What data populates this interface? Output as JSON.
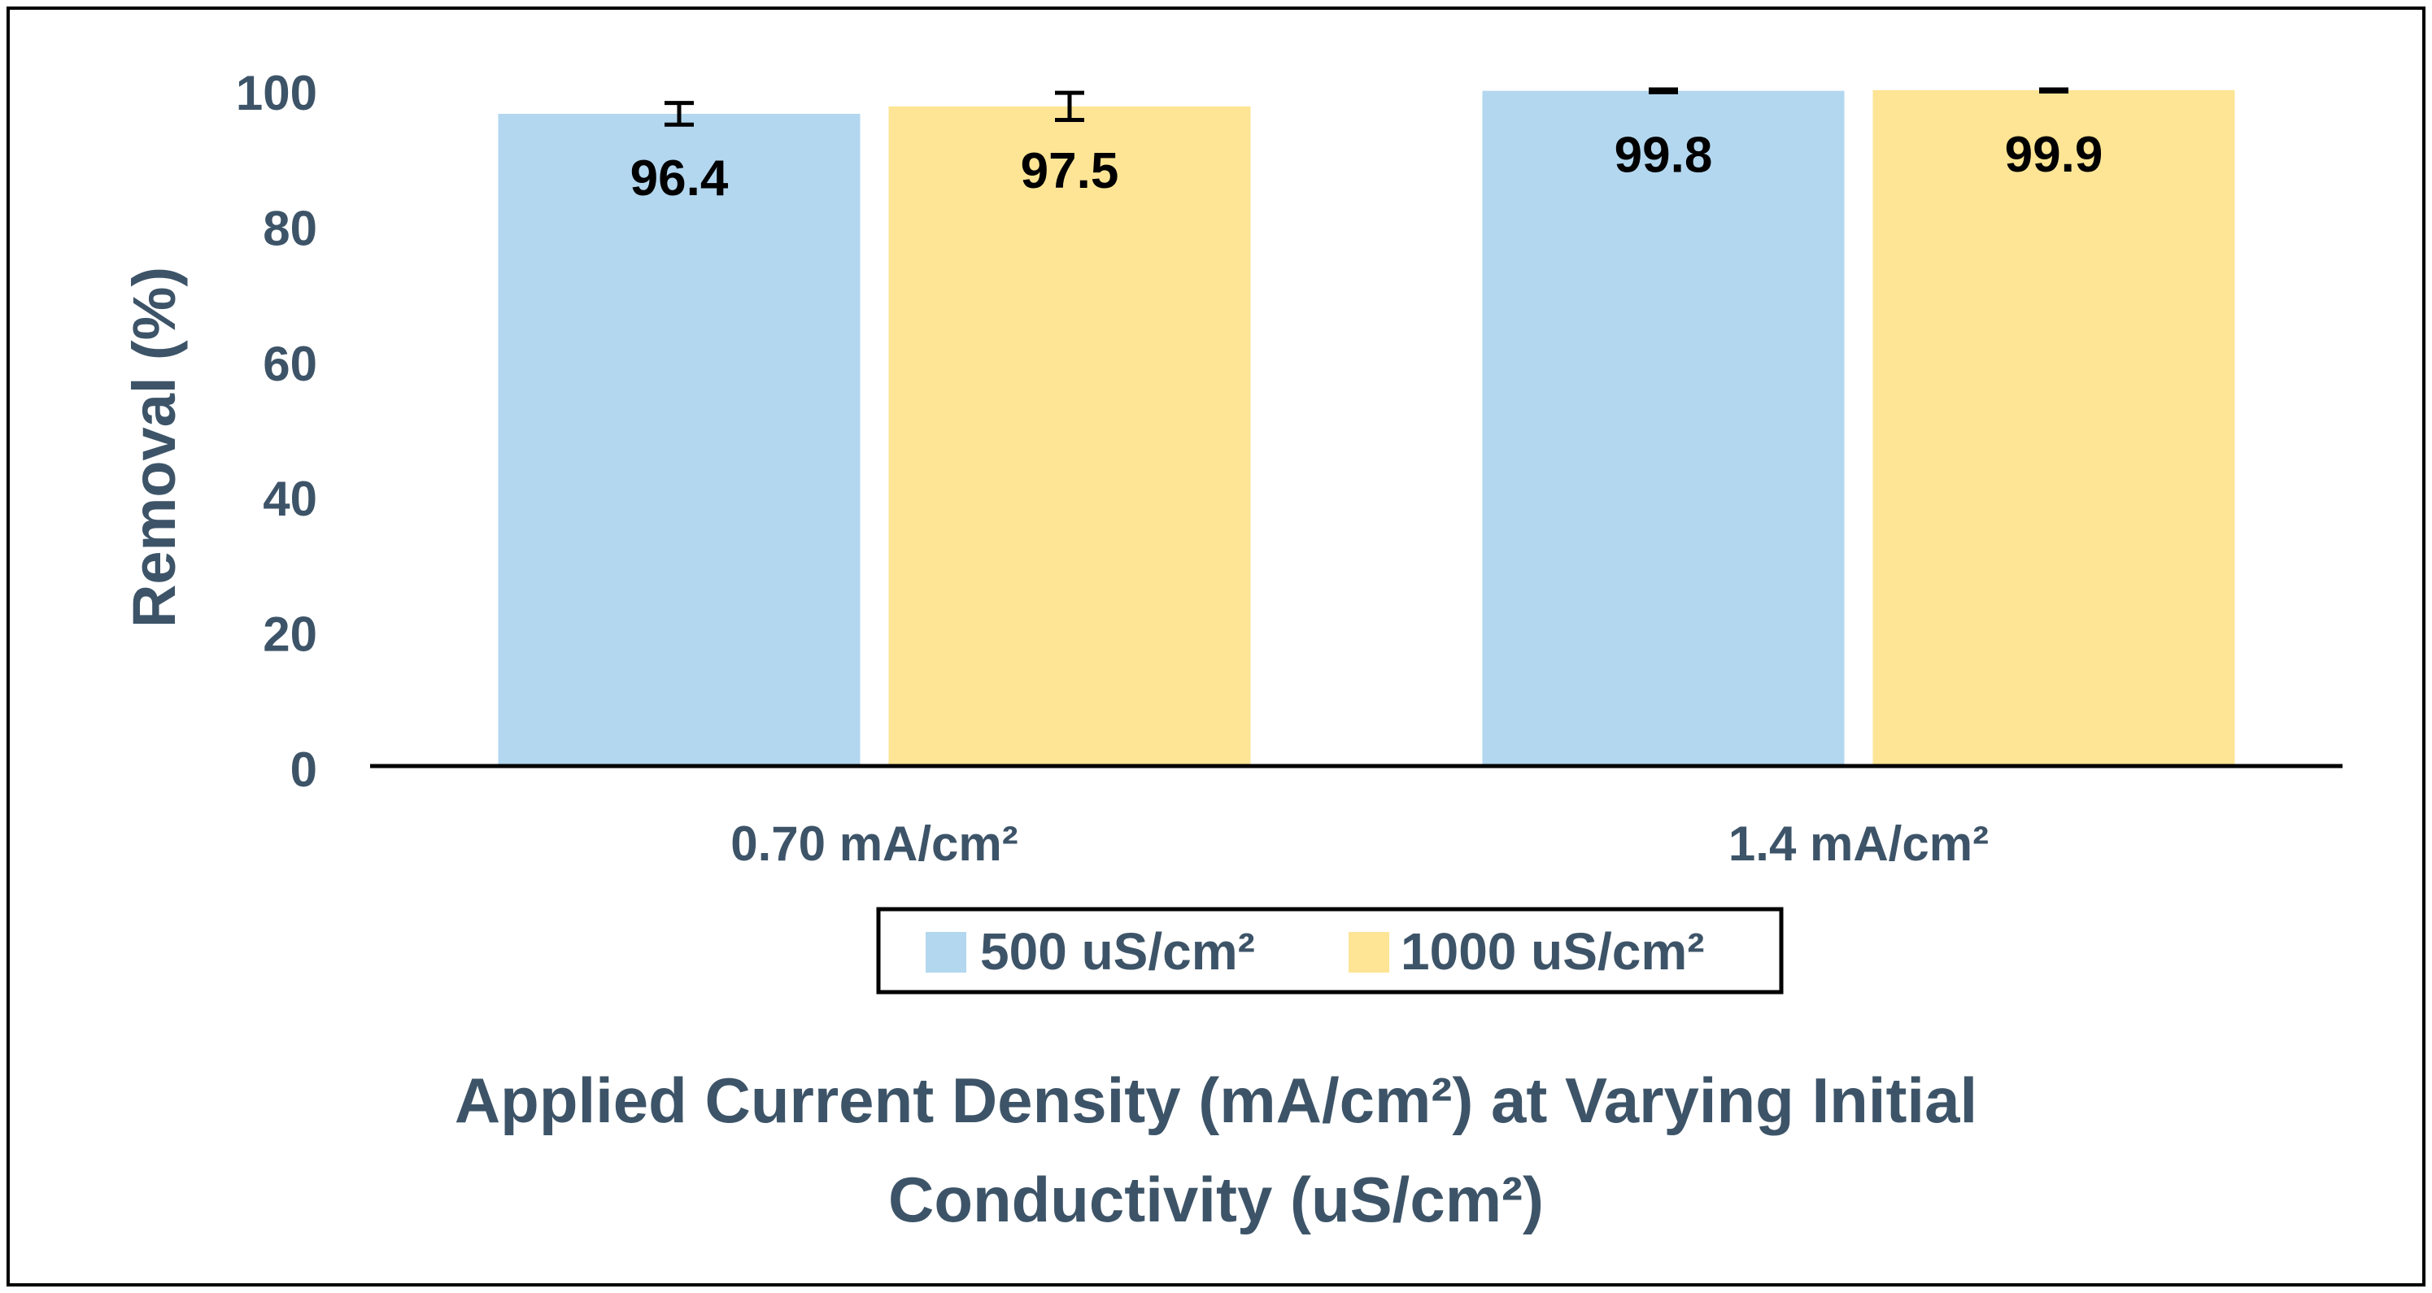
{
  "chart_data": {
    "type": "bar",
    "categories": [
      "0.70 mA/cm²",
      "1.4 mA/cm²"
    ],
    "series": [
      {
        "name": "500 uS/cm²",
        "values": [
          96.4,
          99.8
        ],
        "error": [
          1.6,
          0.2
        ],
        "color": "#b3d7ef"
      },
      {
        "name": "1000 uS/cm²",
        "values": [
          97.5,
          99.9
        ],
        "error": [
          2.0,
          0.2
        ],
        "color": "#fde595"
      }
    ],
    "data_labels": [
      [
        "96.4",
        "99.8"
      ],
      [
        "97.5",
        "99.9"
      ]
    ],
    "ylabel": "Removal (%)",
    "xlabel_lines": [
      "Applied Current Density (mA/cm²) at Varying Initial",
      "Conductivity (uS/cm²)"
    ],
    "ylim": [
      0,
      100
    ],
    "yticks": [
      0,
      20,
      40,
      60,
      80,
      100
    ],
    "grid": false,
    "legend_position": "bottom-center",
    "text_color": "#3d5468",
    "label_color": "#000000"
  }
}
